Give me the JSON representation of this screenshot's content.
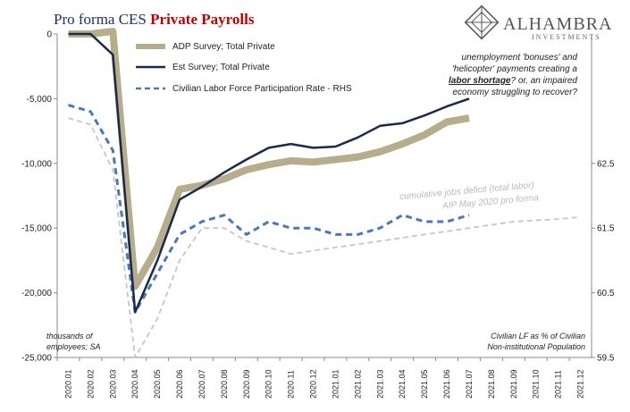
{
  "title_part1": "Pro forma CES ",
  "title_part2": "Private Payrolls",
  "logo": {
    "name": "ALHAMBRA",
    "sub": "INVESTMENTS"
  },
  "notes": {
    "left_line1": "thousands of",
    "left_line2": "employees; SA",
    "right_line1": "Civilian LF as % of Civilian",
    "right_line2": "Non-institutional Population",
    "annot_line1": "unemployment 'bonuses' and",
    "annot_line2a": "'helicopter' payments creating a",
    "annot_line3": "labor shortage",
    "annot_line3b": "? or, an impaired",
    "annot_line4": "economy struggling to recover?",
    "deficit_label": "cumulative jobs deficit (total labor)",
    "proforma_label": "AIP May 2020 pro forma"
  },
  "colors": {
    "adp": "#b5ad8c",
    "est": "#1b2a4a",
    "lfpr": "#4a78b8",
    "proforma": "#c6c6c6",
    "title_blue": "#1f2d6b",
    "title_red": "#c00000"
  },
  "chart_data": {
    "type": "line",
    "x": [
      "2020.01",
      "2020.02",
      "2020.03",
      "2020.04",
      "2020.05",
      "2020.06",
      "2020.07",
      "2020.08",
      "2020.09",
      "2020.10",
      "2020.11",
      "2020.12",
      "2021.01",
      "2021.02",
      "2021.03",
      "2021.04",
      "2021.05",
      "2021.06",
      "2021.07",
      "2021.08",
      "2021.09",
      "2021.10",
      "2021.11",
      "2021.12"
    ],
    "y_left": {
      "min": -25000,
      "max": 0,
      "ticks": [
        0,
        -5000,
        -10000,
        -15000,
        -20000,
        -25000
      ],
      "tick_labels": [
        "0",
        "-5,000",
        "-10,000",
        "-15,000",
        "-20,000",
        "-25,000"
      ]
    },
    "y_right": {
      "min": 59.5,
      "max": 64.5,
      "ticks": [
        59.5,
        60.5,
        61.5,
        62.5
      ],
      "tick_labels": [
        "59.5",
        "60.5",
        "61.5",
        "62.5"
      ]
    },
    "series": [
      {
        "name": "ADP Survey; Total Private",
        "axis": "left",
        "values": [
          0,
          0,
          200,
          -19500,
          -16500,
          -12000,
          -11700,
          -11200,
          -10500,
          -10100,
          -9800,
          -9900,
          -9700,
          -9500,
          -9100,
          -8500,
          -7800,
          -6800,
          -6500,
          null,
          null,
          null,
          null,
          null
        ]
      },
      {
        "name": "Est Survey; Total Private",
        "axis": "left",
        "values": [
          0,
          0,
          -1600,
          -21500,
          -17500,
          -12800,
          -11800,
          -10700,
          -9700,
          -8800,
          -8500,
          -8800,
          -8700,
          -8000,
          -7100,
          -6900,
          -6300,
          -5600,
          -5000,
          null,
          null,
          null,
          null,
          null
        ]
      },
      {
        "name": "Civilian Labor Force Participation Rate - RHS",
        "axis": "right",
        "values": [
          63.4,
          63.3,
          62.7,
          60.2,
          60.8,
          61.4,
          61.6,
          61.7,
          61.4,
          61.6,
          61.5,
          61.5,
          61.4,
          61.4,
          61.5,
          61.7,
          61.6,
          61.6,
          61.7,
          null,
          null,
          null,
          null,
          null
        ]
      },
      {
        "name": "AIP May 2020 pro forma",
        "axis": "right",
        "values": [
          63.2,
          63.1,
          62.4,
          59.5,
          60.1,
          61.0,
          61.5,
          61.5,
          61.3,
          61.2,
          61.1,
          61.15,
          61.2,
          61.25,
          61.3,
          61.35,
          61.4,
          61.45,
          61.5,
          61.55,
          61.6,
          61.62,
          61.64,
          61.67
        ]
      }
    ]
  }
}
